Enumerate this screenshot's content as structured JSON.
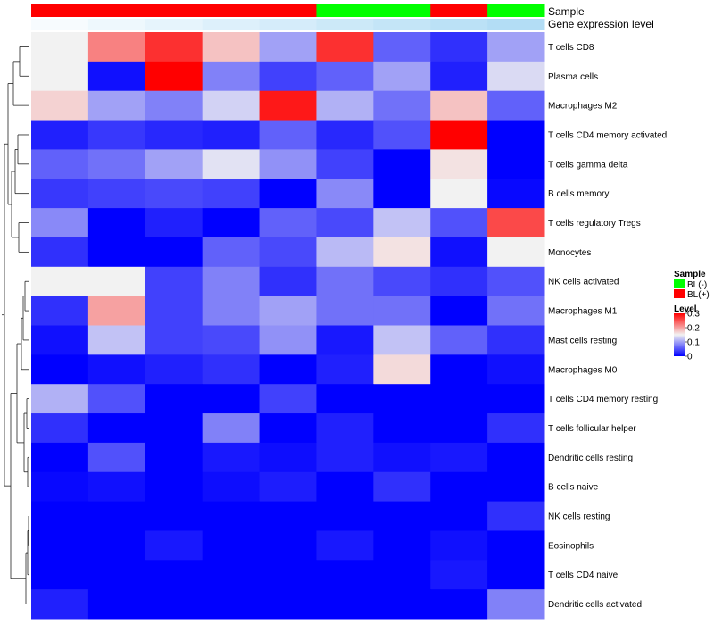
{
  "chart_data": {
    "type": "heatmap",
    "annotation_labels": {
      "sample": "Sample",
      "expression": "Gene expression level"
    },
    "rows": [
      "T cells CD8",
      "Plasma cells",
      "Macrophages M2",
      "T cells CD4 memory activated",
      "T cells gamma delta",
      "B cells memory",
      "T cells regulatory  Tregs",
      "Monocytes",
      "NK cells activated",
      "Macrophages M1",
      "Mast cells resting",
      "Macrophages M0",
      "T cells CD4 memory resting",
      "T cells follicular helper",
      "Dendritic cells resting",
      "B cells naive",
      "NK cells resting",
      "Eosinophils",
      "T cells CD4 naive",
      "Dendritic cells activated"
    ],
    "columns": [
      {
        "sample": "BL(+)",
        "expression": 0.95
      },
      {
        "sample": "BL(+)",
        "expression": 0.9
      },
      {
        "sample": "BL(+)",
        "expression": 0.85
      },
      {
        "sample": "BL(+)",
        "expression": 0.8
      },
      {
        "sample": "BL(+)",
        "expression": 0.75
      },
      {
        "sample": "BL(-)",
        "expression": 0.7
      },
      {
        "sample": "BL(-)",
        "expression": 0.65
      },
      {
        "sample": "BL(+)",
        "expression": 0.6
      },
      {
        "sample": "BL(-)",
        "expression": 0.55
      }
    ],
    "values": [
      [
        0.15,
        0.22,
        0.27,
        0.18,
        0.1,
        0.27,
        0.06,
        0.03,
        0.1
      ],
      [
        0.15,
        0.01,
        0.3,
        0.08,
        0.04,
        0.06,
        0.1,
        0.02,
        0.135
      ],
      [
        0.17,
        0.1,
        0.08,
        0.13,
        0.285,
        0.11,
        0.07,
        0.18,
        0.06
      ],
      [
        0.02,
        0.035,
        0.025,
        0.02,
        0.06,
        0.025,
        0.05,
        0.3,
        0.0
      ],
      [
        0.06,
        0.07,
        0.1,
        0.14,
        0.09,
        0.04,
        0.0,
        0.16,
        0.0
      ],
      [
        0.035,
        0.04,
        0.045,
        0.04,
        0.0,
        0.085,
        0.0,
        0.15,
        0.005
      ],
      [
        0.085,
        0.0,
        0.02,
        0.0,
        0.06,
        0.045,
        0.12,
        0.05,
        0.255
      ],
      [
        0.03,
        0.0,
        0.0,
        0.06,
        0.045,
        0.115,
        0.16,
        0.01,
        0.15
      ],
      [
        0.15,
        0.15,
        0.04,
        0.08,
        0.03,
        0.07,
        0.045,
        0.03,
        0.05
      ],
      [
        0.03,
        0.2,
        0.04,
        0.08,
        0.1,
        0.07,
        0.07,
        0.0,
        0.07
      ],
      [
        0.01,
        0.12,
        0.04,
        0.045,
        0.09,
        0.015,
        0.12,
        0.06,
        0.03
      ],
      [
        0.0,
        0.01,
        0.02,
        0.03,
        0.0,
        0.02,
        0.165,
        0.0,
        0.01
      ],
      [
        0.11,
        0.05,
        0.0,
        0.0,
        0.04,
        0.0,
        0.0,
        0.0,
        0.0
      ],
      [
        0.03,
        0.0,
        0.0,
        0.08,
        0.0,
        0.02,
        0.0,
        0.0,
        0.03
      ],
      [
        0.0,
        0.05,
        0.0,
        0.015,
        0.008,
        0.02,
        0.01,
        0.015,
        0.0
      ],
      [
        0.005,
        0.01,
        0.0,
        0.008,
        0.018,
        0.0,
        0.03,
        0.0,
        0.0
      ],
      [
        0.0,
        0.0,
        0.0,
        0.0,
        0.0,
        0.0,
        0.0,
        0.0,
        0.03
      ],
      [
        0.0,
        0.0,
        0.015,
        0.0,
        0.0,
        0.015,
        0.0,
        0.01,
        0.0
      ],
      [
        0.0,
        0.0,
        0.0,
        0.0,
        0.0,
        0.0,
        0.0,
        0.015,
        0.0
      ],
      [
        0.02,
        0.0,
        0.0,
        0.0,
        0.0,
        0.0,
        0.0,
        0.0,
        0.08
      ]
    ],
    "legend": {
      "sample_title": "Sample",
      "sample_items": [
        {
          "label": "BL(-)",
          "color": "#00ff00"
        },
        {
          "label": "BL(+)",
          "color": "#ff0000"
        }
      ],
      "level_title": "Level",
      "level_ticks": [
        "0.3",
        "0.2",
        "0.1",
        "0"
      ],
      "level_tick_values": [
        0.3,
        0.2,
        0.1,
        0
      ]
    },
    "color_scale": {
      "min": 0,
      "mid": 0.15,
      "max": 0.3,
      "low": "#0000ff",
      "midColor": "#f2f2f2",
      "high": "#ff0000"
    },
    "expression_scale": {
      "low": "#56b4e9",
      "high": "#ffffff"
    },
    "dendrogram": "rows"
  }
}
